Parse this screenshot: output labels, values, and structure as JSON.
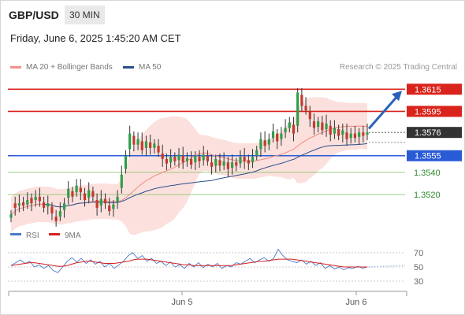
{
  "header": {
    "symbol": "GBP/USD",
    "timeframe": "30 MIN",
    "datetime": "Friday, June 6, 2025 1:45:20 AM CET"
  },
  "legend": {
    "ma20_label": "MA 20 + Bollinger Bands",
    "ma50_label": "MA 50",
    "credit": "Research © 2025 Trading Central"
  },
  "colors": {
    "resistance": "#d9241c",
    "support": "#2a5bd7",
    "target_green": "#7cbf5a",
    "bull": "#2e9e4a",
    "bear": "#c23a2e",
    "ma20": "#f08a80",
    "ma50": "#2b4e8c",
    "arrow": "#2b62b8"
  },
  "chart_data": [
    {
      "type": "candlestick",
      "title": "",
      "xlabel": "",
      "ylabel": "",
      "ylim": [
        1.3493,
        1.3628
      ],
      "x_ticks": [
        "Jun 5",
        "Jun 6"
      ],
      "series": [
        {
          "name": "price",
          "close": [
            1.3502,
            1.3508,
            1.3512,
            1.351,
            1.3515,
            1.3512,
            1.3518,
            1.3514,
            1.3508,
            1.3512,
            1.3503,
            1.3496,
            1.3505,
            1.3512,
            1.3525,
            1.3518,
            1.3528,
            1.3522,
            1.3515,
            1.3524,
            1.3518,
            1.3508,
            1.3516,
            1.3512,
            1.3505,
            1.3511,
            1.3518,
            1.3538,
            1.3555,
            1.3575,
            1.3565,
            1.357,
            1.356,
            1.3568,
            1.3562,
            1.3566,
            1.3558,
            1.3552,
            1.3548,
            1.3554,
            1.355,
            1.3556,
            1.3549,
            1.3553,
            1.3547,
            1.3555,
            1.355,
            1.3556,
            1.355,
            1.3545,
            1.3552,
            1.3546,
            1.355,
            1.3543,
            1.3549,
            1.3546,
            1.3554,
            1.355,
            1.3548,
            1.3554,
            1.356,
            1.357,
            1.3564,
            1.357,
            1.3577,
            1.3568,
            1.3575,
            1.358,
            1.3585,
            1.3575,
            1.3612,
            1.36,
            1.3596,
            1.3588,
            1.358,
            1.3586,
            1.3578,
            1.3584,
            1.3574,
            1.358,
            1.3573,
            1.3578,
            1.357,
            1.3575,
            1.3571,
            1.3576,
            1.3573,
            1.3576
          ],
          "open_offset": [
            -0.0003,
            0.0004,
            -0.0002,
            0.0003,
            -0.0004,
            0.0005,
            -0.0003,
            0.0004,
            0.0005,
            -0.0003,
            0.0006,
            0.0004,
            -0.0005,
            -0.0006,
            -0.0008,
            0.0005,
            -0.0006,
            0.0004,
            0.0006,
            -0.0007,
            0.0005,
            0.0007,
            -0.0006,
            0.0004,
            0.0005,
            -0.0004,
            -0.0005,
            -0.0012,
            -0.0012,
            -0.0014,
            0.0008,
            -0.0005,
            0.0008,
            -0.0006,
            0.0005,
            -0.0004,
            0.0006,
            0.0005,
            0.0004,
            -0.0005,
            0.0004,
            -0.0005,
            0.0006,
            -0.0003,
            0.0005,
            -0.0006,
            0.0004,
            -0.0005,
            0.0005,
            0.0004,
            -0.0006,
            0.0005,
            -0.0004,
            0.0006,
            -0.0005,
            0.0003,
            -0.0006,
            0.0004,
            0.0003,
            -0.0005,
            -0.0005,
            -0.0009,
            0.0005,
            -0.0005,
            -0.0006,
            0.0007,
            -0.0005,
            -0.0004,
            -0.0005,
            0.0008,
            -0.003,
            0.001,
            0.0004,
            0.0007,
            0.0006,
            -0.0005,
            0.0007,
            -0.0005,
            0.0008,
            -0.0005,
            0.0006,
            -0.0004,
            0.0006,
            -0.0004,
            0.0004,
            -0.0004,
            0.0003,
            -0.0002
          ]
        },
        {
          "name": "MA 20",
          "note": "computed as 20-period moving average of close"
        },
        {
          "name": "MA 50",
          "note": "computed as 50-period moving average of close"
        }
      ],
      "levels": [
        {
          "label": "1.3615",
          "value": 1.3615,
          "kind": "resistance"
        },
        {
          "label": "1.3595",
          "value": 1.3595,
          "kind": "resistance"
        },
        {
          "label": "1.3576",
          "value": 1.3576,
          "kind": "last"
        },
        {
          "label": "1.3555",
          "value": 1.3555,
          "kind": "support"
        },
        {
          "label": "1.3540",
          "value": 1.354,
          "kind": "target"
        },
        {
          "label": "1.3520",
          "value": 1.352,
          "kind": "target"
        }
      ],
      "arrow": {
        "from": 1.3578,
        "to": 1.3615,
        "direction": "up"
      },
      "grid": false,
      "legend_position": "top-left"
    },
    {
      "type": "line",
      "title": "",
      "legend": [
        "RSI",
        "9MA"
      ],
      "ylim": [
        30,
        70
      ],
      "y_ticks": [
        "70",
        "50",
        "30"
      ],
      "series": [
        {
          "name": "RSI",
          "values": [
            52,
            56,
            60,
            55,
            58,
            50,
            53,
            48,
            52,
            45,
            42,
            50,
            58,
            63,
            57,
            62,
            55,
            60,
            54,
            58,
            50,
            55,
            48,
            53,
            58,
            66,
            70,
            62,
            66,
            58,
            62,
            55,
            58,
            52,
            57,
            50,
            53,
            48,
            55,
            50,
            56,
            49,
            54,
            50,
            55,
            48,
            52,
            50,
            56,
            54,
            58,
            62,
            56,
            60,
            63,
            58,
            62,
            75,
            66,
            60,
            58,
            56,
            60,
            54,
            58,
            52,
            56,
            48,
            52,
            47,
            50,
            46,
            49,
            48,
            51,
            48,
            50
          ]
        },
        {
          "name": "9MA",
          "values": [
            52,
            53,
            54,
            55,
            56,
            56,
            55,
            54,
            53,
            52,
            51,
            51,
            52,
            54,
            56,
            57,
            58,
            58,
            57,
            56,
            55,
            55,
            55,
            56,
            57,
            58,
            60,
            61,
            61,
            61,
            60,
            59,
            58,
            57,
            56,
            55,
            54,
            53,
            53,
            52,
            52,
            52,
            52,
            52,
            52,
            52,
            52,
            52,
            53,
            54,
            55,
            56,
            57,
            58,
            58,
            59,
            60,
            61,
            61,
            61,
            61,
            60,
            59,
            58,
            57,
            56,
            55,
            54,
            53,
            52,
            51,
            50,
            50,
            50,
            50,
            50,
            50
          ]
        }
      ]
    }
  ]
}
